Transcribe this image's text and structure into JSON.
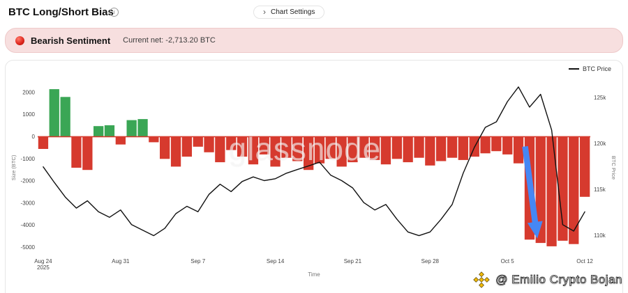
{
  "icons": {
    "info": "i",
    "chevron_right": "›"
  },
  "header": {
    "title": "BTC Long/Short Bias",
    "chart_settings": "Chart Settings"
  },
  "banner": {
    "title": "Bearish Sentiment",
    "subtitle": "Current net: -2,713.20 BTC"
  },
  "legend": {
    "btc_price": "BTC Price"
  },
  "watermark": "glassnode",
  "credit": "@ Emilio Crypto Bojan",
  "chart_data": {
    "type": "bar+line",
    "title": "BTC Long/Short Bias",
    "x_dates": [
      "Aug 24",
      "Aug 25",
      "Aug 26",
      "Aug 27",
      "Aug 28",
      "Aug 29",
      "Aug 30",
      "Aug 31",
      "Sep 1",
      "Sep 2",
      "Sep 3",
      "Sep 4",
      "Sep 5",
      "Sep 6",
      "Sep 7",
      "Sep 8",
      "Sep 9",
      "Sep 10",
      "Sep 11",
      "Sep 12",
      "Sep 13",
      "Sep 14",
      "Sep 15",
      "Sep 16",
      "Sep 17",
      "Sep 18",
      "Sep 19",
      "Sep 20",
      "Sep 21",
      "Sep 22",
      "Sep 23",
      "Sep 24",
      "Sep 25",
      "Sep 26",
      "Sep 27",
      "Sep 28",
      "Sep 29",
      "Sep 30",
      "Oct 1",
      "Oct 2",
      "Oct 3",
      "Oct 4",
      "Oct 5",
      "Oct 6",
      "Oct 7",
      "Oct 8",
      "Oct 9",
      "Oct 10",
      "Oct 11",
      "Oct 12"
    ],
    "series": [
      {
        "name": "Net Long/Short Size (BTC)",
        "type": "bar",
        "axis": "left",
        "values": [
          -550,
          2150,
          1800,
          -1400,
          -1500,
          480,
          520,
          -350,
          750,
          800,
          -250,
          -1000,
          -1350,
          -900,
          -450,
          -700,
          -1150,
          -600,
          -900,
          -1250,
          -800,
          -1350,
          -950,
          -1100,
          -1500,
          -1200,
          -1000,
          -1350,
          -1150,
          -950,
          -1050,
          -1250,
          -1000,
          -1150,
          -950,
          -1300,
          -1100,
          -950,
          -1050,
          -900,
          -750,
          -650,
          -800,
          -1200,
          -4650,
          -4800,
          -4950,
          -4700,
          -4850,
          -2713.2
        ]
      },
      {
        "name": "BTC Price",
        "type": "line",
        "axis": "right",
        "values_usd": [
          117500,
          115800,
          114200,
          113000,
          113800,
          112600,
          112000,
          112800,
          111200,
          110600,
          110000,
          110800,
          112400,
          113200,
          112600,
          114500,
          115600,
          114800,
          115900,
          116400,
          116000,
          116200,
          116800,
          117200,
          117600,
          118000,
          116600,
          116000,
          115200,
          113600,
          112800,
          113400,
          111800,
          110400,
          110000,
          110400,
          111800,
          113400,
          116800,
          119600,
          121800,
          122400,
          124600,
          126200,
          124000,
          125400,
          121500,
          111200,
          110500,
          112600
        ]
      }
    ],
    "left_axis": {
      "label": "Size (BTC)",
      "range": [
        -5300,
        2500
      ],
      "ticks": [
        2000,
        1000,
        0,
        -1000,
        -2000,
        -3000,
        -4000,
        -5000
      ]
    },
    "right_axis": {
      "label": "BTC Price",
      "range": [
        108000,
        126800
      ],
      "ticks": [
        {
          "value": 125000,
          "label": "125k"
        },
        {
          "value": 120000,
          "label": "120k"
        },
        {
          "value": 115000,
          "label": "115k"
        },
        {
          "value": 110000,
          "label": "110k"
        }
      ]
    },
    "x_axis": {
      "label": "Time",
      "ticks": [
        {
          "index": 0,
          "lines": [
            "Aug 24",
            "2025"
          ]
        },
        {
          "index": 7,
          "lines": [
            "Aug 31"
          ]
        },
        {
          "index": 14,
          "lines": [
            "Sep 7"
          ]
        },
        {
          "index": 21,
          "lines": [
            "Sep 14"
          ]
        },
        {
          "index": 28,
          "lines": [
            "Sep 21"
          ]
        },
        {
          "index": 35,
          "lines": [
            "Sep 28"
          ]
        },
        {
          "index": 42,
          "lines": [
            "Oct 5"
          ]
        },
        {
          "index": 49,
          "lines": [
            "Oct 12"
          ]
        }
      ]
    },
    "colors": {
      "bar_positive": "#3aa655",
      "bar_negative": "#d63a2e",
      "zero_line": "#d63a2e",
      "price_line": "#111111",
      "arrow": "#4687f4",
      "tick_text": "#444444",
      "axis_title": "#777777"
    },
    "annotation": {
      "type": "arrow",
      "from": {
        "index": 43.6,
        "value": -440
      },
      "to": {
        "index": 44.7,
        "value": -4600
      }
    }
  }
}
